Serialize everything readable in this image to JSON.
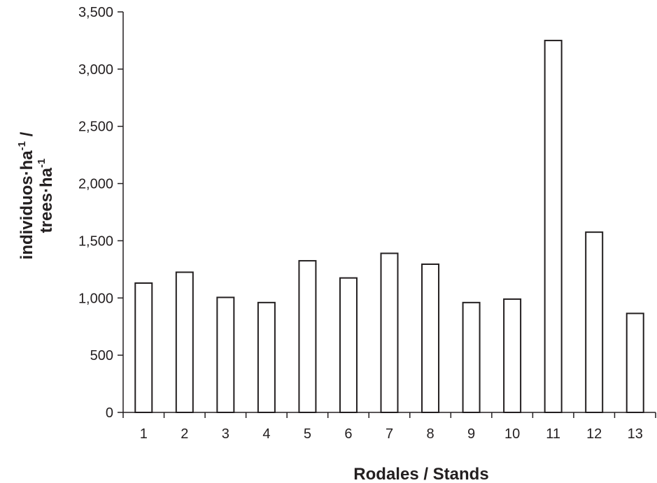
{
  "chart_data": {
    "type": "bar",
    "categories": [
      "1",
      "2",
      "3",
      "4",
      "5",
      "6",
      "7",
      "8",
      "9",
      "10",
      "11",
      "12",
      "13"
    ],
    "values": [
      1130,
      1225,
      1005,
      960,
      1325,
      1175,
      1390,
      1295,
      960,
      990,
      3250,
      1575,
      865
    ],
    "ylim": [
      0,
      3500
    ],
    "yticks": [
      0,
      500,
      1000,
      1500,
      2000,
      2500,
      3000,
      3500
    ],
    "ytick_labels": [
      "0",
      "500",
      "1,000",
      "1,500",
      "2,000",
      "2,500",
      "3,000",
      "3,500"
    ],
    "xlabel": "Rodales / Stands",
    "ylabel_line1": "individuos·ha",
    "ylabel_line1_sup": "-1",
    "ylabel_line1_tail": " /",
    "ylabel_line2": "trees·ha",
    "ylabel_line2_sup": "-1",
    "grid": false,
    "bar_fill": "#ffffff",
    "bar_stroke": "#231f20"
  }
}
